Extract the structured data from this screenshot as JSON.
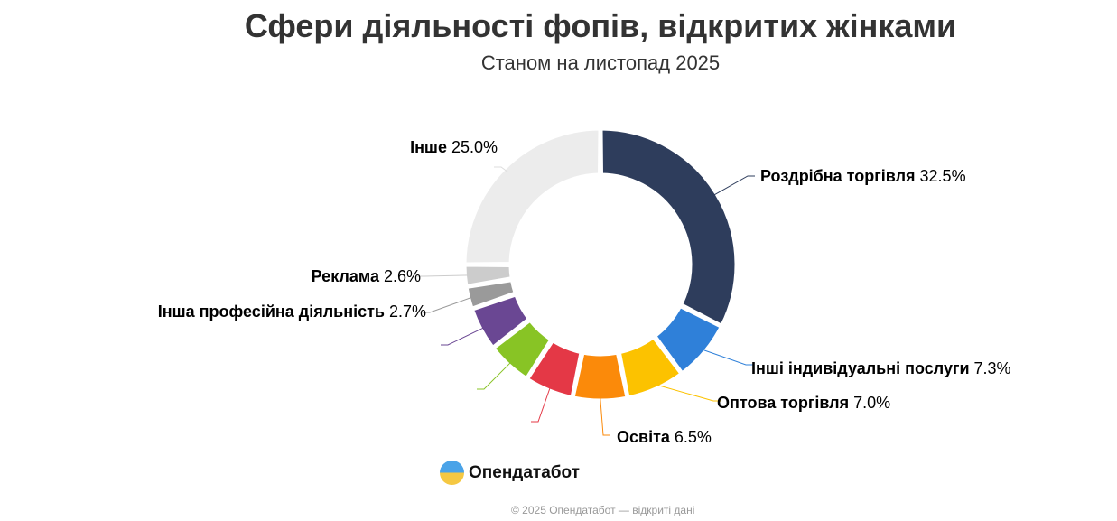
{
  "chart_data": {
    "type": "pie",
    "title": "Сфери діяльності фопів, відкритих жінками",
    "subtitle": "Станом на листопад 2025",
    "donut": true,
    "slices": [
      {
        "label": "Роздрібна торгівля",
        "value": 32.5,
        "display": "32.5%",
        "color": "#2e3d5c"
      },
      {
        "label": "Інші індивідуальні послуги",
        "value": 7.3,
        "display": "7.3%",
        "color": "#2f80d9"
      },
      {
        "label": "Оптова торгівля",
        "value": 7.0,
        "display": "7.0%",
        "color": "#fcc200"
      },
      {
        "label": "Освіта",
        "value": 6.5,
        "display": "6.5%",
        "color": "#fb8a0a"
      },
      {
        "label": "",
        "value": 5.8,
        "display": "",
        "color": "#e43846"
      },
      {
        "label": "",
        "value": 5.4,
        "display": "",
        "color": "#88c425"
      },
      {
        "label": "",
        "value": 5.2,
        "display": "",
        "color": "#6a4793"
      },
      {
        "label": "Інша професійна діяльність",
        "value": 2.7,
        "display": "2.7%",
        "color": "#9a9a9a"
      },
      {
        "label": "Реклама",
        "value": 2.6,
        "display": "2.6%",
        "color": "#cccccc"
      },
      {
        "label": "Інше",
        "value": 25.0,
        "display": "25.0%",
        "color": "#ececec"
      }
    ]
  },
  "brand": {
    "logo_text": "Опендатабот"
  },
  "footer": "© 2025 Опендатабот — відкриті дані"
}
